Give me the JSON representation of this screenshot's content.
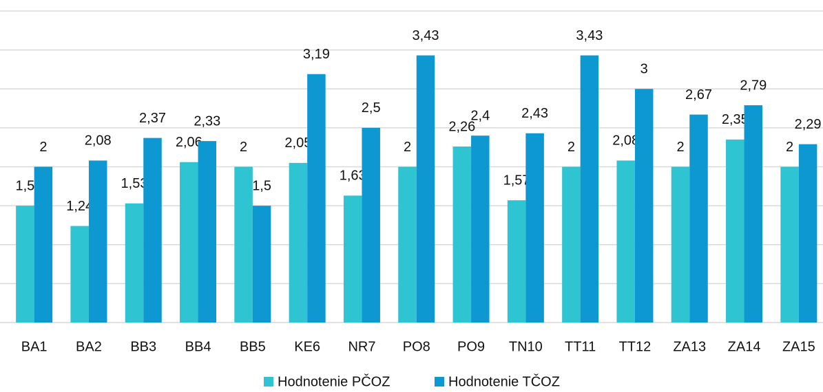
{
  "chart_data": {
    "type": "bar",
    "categories": [
      "BA1",
      "BA2",
      "BB3",
      "BB4",
      "BB5",
      "KE6",
      "NR7",
      "PO8",
      "PO9",
      "TN10",
      "TT11",
      "TT12",
      "ZA13",
      "ZA14",
      "ZA15"
    ],
    "series": [
      {
        "name": "Hodnotenie PČOZ",
        "color": "#2ec4d2",
        "values": [
          1.5,
          1.24,
          1.53,
          2.06,
          2,
          2.05,
          1.63,
          2,
          2.26,
          1.57,
          2,
          2.08,
          2,
          2.35,
          2
        ],
        "value_labels": [
          "1,5",
          "1,24",
          "1,53",
          "2,06",
          "2",
          "2,05",
          "1,63",
          "2",
          "2,26",
          "1,57",
          "2",
          "2,08",
          "2",
          "2,35",
          "2"
        ]
      },
      {
        "name": "Hodnotenie TČOZ",
        "color": "#0e98d2",
        "values": [
          2,
          2.08,
          2.37,
          2.33,
          1.5,
          3.19,
          2.5,
          3.43,
          2.4,
          2.43,
          3.43,
          3,
          2.67,
          2.79,
          2.29
        ],
        "value_labels": [
          "2",
          "2,08",
          "2,37",
          "2,33",
          "1,5",
          "3,19",
          "2,5",
          "3,43",
          "2,4",
          "2,43",
          "3,43",
          "3",
          "2,67",
          "2,79",
          "2,29"
        ]
      }
    ],
    "ylim": [
      0,
      4
    ],
    "yticks": [
      0,
      0.5,
      1,
      1.5,
      2,
      2.5,
      3,
      3.5,
      4
    ],
    "grid": true,
    "legend": "bottom"
  }
}
